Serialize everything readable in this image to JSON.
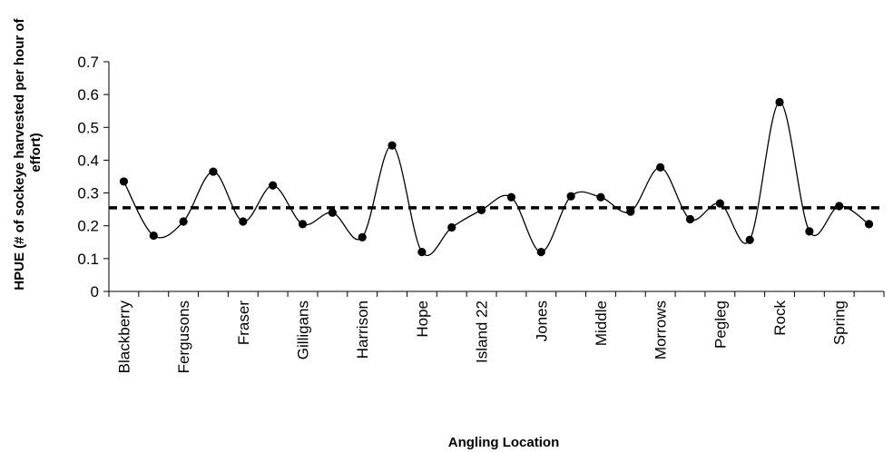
{
  "chart_data": {
    "type": "line",
    "xlabel": "Angling Location",
    "ylabel": "HPUE (# of sockeye harvested per hour of effort)",
    "ylabel_lines": [
      "HPUE (# of sockeye harvested per hour of",
      "effort)"
    ],
    "ylim": [
      0,
      0.7
    ],
    "yticks": [
      "0",
      "0.1",
      "0.2",
      "0.3",
      "0.4",
      "0.5",
      "0.6",
      "0.7"
    ],
    "category_count": 26,
    "labeled_categories": [
      "Blackberry",
      "Fergusons",
      "Fraser",
      "Gilligans",
      "Harrison",
      "Hope",
      "Island 22",
      "Jones",
      "Middle",
      "Morrows",
      "Pegleg",
      "Rock",
      "Spring"
    ],
    "series": [
      {
        "values": [
          0.335,
          0.17,
          0.213,
          0.365,
          0.213,
          0.323,
          0.205,
          0.24,
          0.165,
          0.445,
          0.12,
          0.195,
          0.248,
          0.287,
          0.12,
          0.29,
          0.287,
          0.243,
          0.378,
          0.22,
          0.268,
          0.157,
          0.577,
          0.183,
          0.26,
          0.205
        ],
        "color": "#000000",
        "smoothed": true,
        "markers": "filled-circle"
      }
    ],
    "reference_line": {
      "value": 0.255,
      "style": "dashed",
      "color": "#000000"
    },
    "grid": false,
    "legend": "none"
  }
}
